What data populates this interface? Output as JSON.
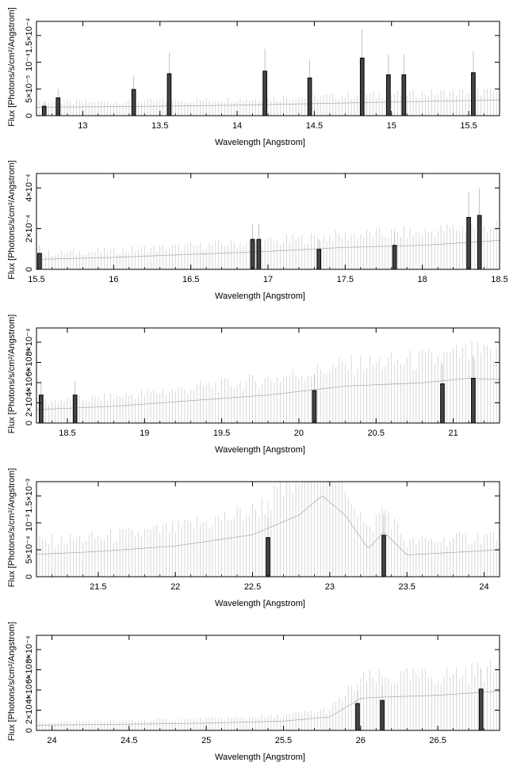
{
  "chart_data": [
    {
      "type": "line",
      "xlabel": "Wavelength [Angstrom]",
      "ylabel": "Flux [Photons/s/cm²/Angstrom]",
      "xlim": [
        12.7,
        15.7
      ],
      "ylim": [
        0,
        0.00018
      ],
      "xticks": [
        "13",
        "13.5",
        "14",
        "14.5",
        "15",
        "15.5"
      ],
      "yticks": [
        "0",
        "5×10⁻⁵",
        "10⁻⁴",
        "1.5×10⁻⁴"
      ],
      "series": [
        {
          "continuum": [
            [
              12.7,
              1.6e-05
            ],
            [
              13.5,
              1.8e-05
            ],
            [
              14.0,
              2e-05
            ],
            [
              14.5,
              2.3e-05
            ],
            [
              15.0,
              2.6e-05
            ],
            [
              15.7,
              3e-05
            ]
          ]
        },
        {
          "bins": [
            [
              12.75,
              1.8e-05
            ],
            [
              12.84,
              3.4e-05
            ],
            [
              13.33,
              5e-05
            ],
            [
              13.56,
              8e-05
            ],
            [
              14.18,
              8.5e-05
            ],
            [
              14.47,
              7.2e-05
            ],
            [
              14.81,
              0.00011
            ],
            [
              14.98,
              7.8e-05
            ],
            [
              15.08,
              7.8e-05
            ],
            [
              15.53,
              8.2e-05
            ]
          ]
        }
      ]
    },
    {
      "type": "line",
      "xlabel": "Wavelength [Angstrom]",
      "ylabel": "Flux [Photons/s/cm²/Angstrom]",
      "xlim": [
        15.5,
        18.5
      ],
      "ylim": [
        0,
        0.00048
      ],
      "xticks": [
        "15.5",
        "16",
        "16.5",
        "17",
        "17.5",
        "18",
        "18.5"
      ],
      "yticks": [
        "0",
        "2×10⁻⁴",
        "4×10⁻⁴"
      ],
      "series": [
        {
          "continuum": [
            [
              15.5,
              5e-05
            ],
            [
              16.0,
              6e-05
            ],
            [
              16.5,
              7.5e-05
            ],
            [
              17.0,
              9e-05
            ],
            [
              17.5,
              0.00011
            ],
            [
              18.0,
              0.00012
            ],
            [
              18.5,
              0.000145
            ]
          ]
        },
        {
          "bins": [
            [
              15.52,
              8e-05
            ],
            [
              16.9,
              0.00015
            ],
            [
              16.94,
              0.00015
            ],
            [
              17.33,
              0.0001
            ],
            [
              17.82,
              0.00012
            ],
            [
              18.3,
              0.00026
            ],
            [
              18.37,
              0.00027
            ]
          ]
        }
      ]
    },
    {
      "type": "line",
      "xlabel": "Wavelength [Angstrom]",
      "ylabel": "Flux [Photons/s/cm²/Angstrom]",
      "xlim": [
        18.3,
        21.3
      ],
      "ylim": [
        0,
        0.00085
      ],
      "xticks": [
        "18.5",
        "19",
        "19.5",
        "20",
        "20.5",
        "21"
      ],
      "yticks": [
        "0",
        "2×10⁻⁴",
        "4×10⁻⁴",
        "6×10⁻⁴",
        "8×10⁻⁴"
      ],
      "series": [
        {
          "continuum": [
            [
              18.3,
              0.00012
            ],
            [
              18.8,
              0.00015
            ],
            [
              19.3,
              0.0002
            ],
            [
              19.8,
              0.00025
            ],
            [
              20.3,
              0.00033
            ],
            [
              20.8,
              0.00036
            ],
            [
              21.1,
              0.0004
            ],
            [
              21.3,
              0.00039
            ]
          ]
        },
        {
          "bins": [
            [
              18.33,
              0.00025
            ],
            [
              18.55,
              0.00025
            ],
            [
              20.1,
              0.00029
            ],
            [
              20.93,
              0.00035
            ],
            [
              21.13,
              0.0004
            ]
          ]
        }
      ]
    },
    {
      "type": "line",
      "xlabel": "Wavelength [Angstrom]",
      "ylabel": "Flux [Photons/s/cm²/Angstrom]",
      "xlim": [
        21.1,
        24.1
      ],
      "ylim": [
        0,
        0.0017
      ],
      "xticks": [
        "21.5",
        "22",
        "22.5",
        "23",
        "23.5",
        "24"
      ],
      "yticks": [
        "0",
        "5×10⁻⁴",
        "10⁻³",
        "1.5×10⁻³"
      ],
      "series": [
        {
          "continuum": [
            [
              21.1,
              0.0004
            ],
            [
              21.5,
              0.00045
            ],
            [
              22.0,
              0.00055
            ],
            [
              22.5,
              0.00075
            ],
            [
              22.8,
              0.0011
            ],
            [
              22.95,
              0.00145
            ],
            [
              23.1,
              0.0011
            ],
            [
              23.25,
              0.0005
            ],
            [
              23.35,
              0.0008
            ],
            [
              23.5,
              0.00039
            ],
            [
              24.1,
              0.00048
            ]
          ]
        },
        {
          "bins": [
            [
              22.6,
              0.0007
            ],
            [
              23.35,
              0.00074
            ]
          ]
        }
      ]
    },
    {
      "type": "line",
      "xlabel": "Wavelength [Angstrom]",
      "ylabel": "Flux [Photons/s/cm²/Angstrom]",
      "xlim": [
        23.9,
        26.9
      ],
      "ylim": [
        0,
        0.00092
      ],
      "xticks": [
        "24",
        "24.5",
        "25",
        "25.5",
        "26",
        "26.5"
      ],
      "yticks": [
        "0",
        "2×10⁻⁴",
        "4×10⁻⁴",
        "6×10⁻⁴",
        "8×10⁻⁴"
      ],
      "series": [
        {
          "continuum": [
            [
              23.9,
              5e-05
            ],
            [
              24.5,
              6e-05
            ],
            [
              25.0,
              7e-05
            ],
            [
              25.5,
              9e-05
            ],
            [
              25.8,
              0.00013
            ],
            [
              26.0,
              0.00031
            ],
            [
              26.1,
              0.00032
            ],
            [
              26.5,
              0.00034
            ],
            [
              26.9,
              0.00038
            ]
          ]
        },
        {
          "bins": [
            [
              25.98,
              0.00026
            ],
            [
              26.14,
              0.00029
            ],
            [
              26.78,
              0.0004
            ]
          ]
        }
      ]
    }
  ]
}
